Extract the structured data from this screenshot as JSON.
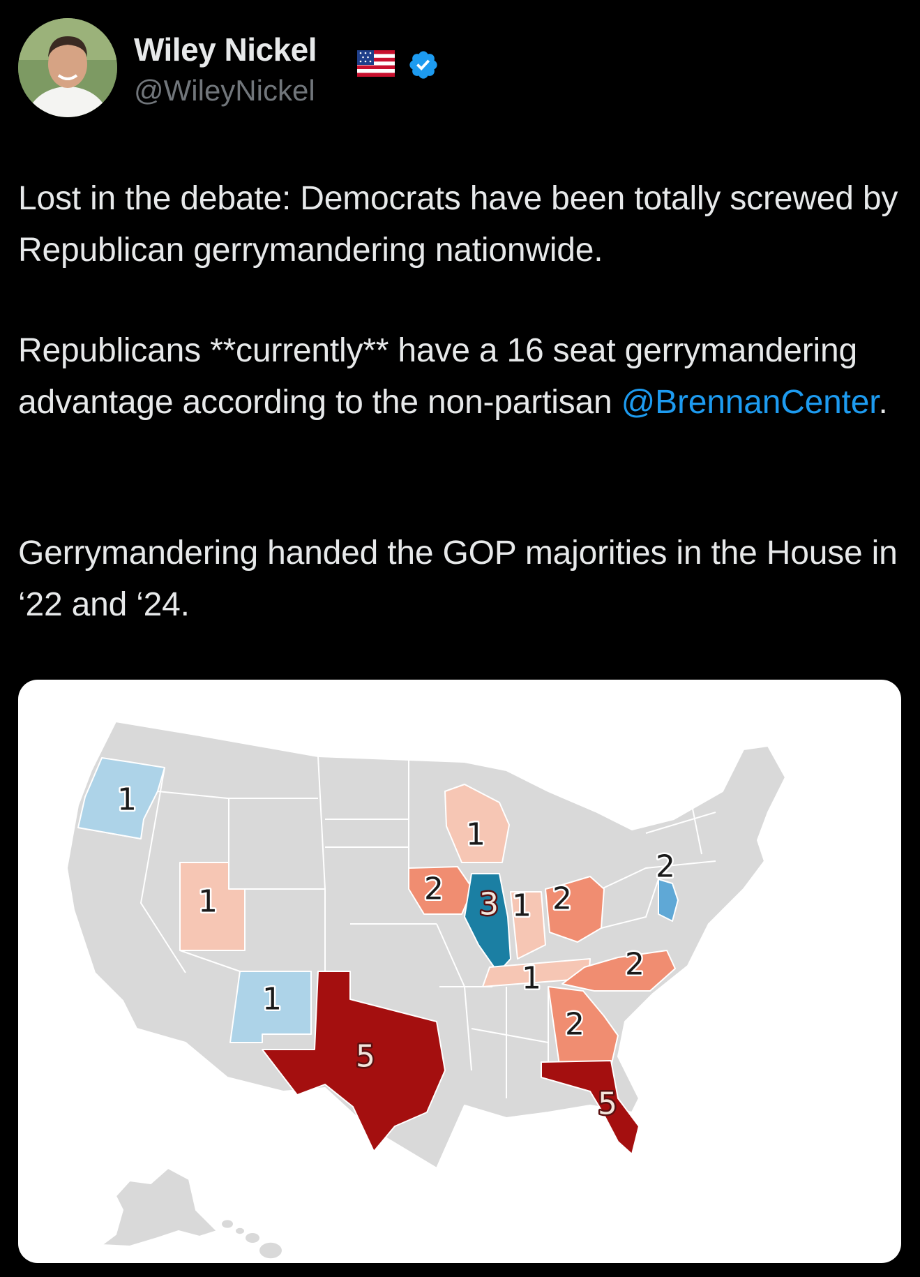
{
  "author": {
    "name": "Wiley Nickel",
    "handle": "@WileyNickel",
    "flag_icon": "us-flag-icon",
    "verified_icon": "verified-badge-icon",
    "verified_color": "#1d9bf0"
  },
  "tweet": {
    "p1": "Lost in the debate: Democrats have been totally screwed by Republican gerrymandering nationwide.",
    "p2_before": "Republicans **currently** have a 16 seat gerrymandering advantage according to the non-partisan ",
    "p2_mention": "@BrennanCenter",
    "p2_after": ".",
    "p3": "Gerrymandering handed the GOP majorities in the House in ‘22 and ‘24."
  },
  "map": {
    "type": "choropleth",
    "region": "United States",
    "colors": {
      "neutral": "#d9d9d9",
      "light_red": "#f6c6b4",
      "medium_red": "#f08d71",
      "dark_red": "#a40f0f",
      "light_blue": "#add3e8",
      "medium_blue": "#5fa8d6",
      "dark_blue": "#1b7fa3"
    },
    "states": [
      {
        "state": "Oregon",
        "label": "1",
        "party": "D"
      },
      {
        "state": "Utah",
        "label": "1",
        "party": "R"
      },
      {
        "state": "New Mexico",
        "label": "1",
        "party": "D"
      },
      {
        "state": "Texas",
        "label": "5",
        "party": "R"
      },
      {
        "state": "Wisconsin",
        "label": "1",
        "party": "R"
      },
      {
        "state": "Iowa",
        "label": "2",
        "party": "R"
      },
      {
        "state": "Illinois",
        "label": "3",
        "party": "D"
      },
      {
        "state": "Indiana",
        "label": "1",
        "party": "R"
      },
      {
        "state": "Ohio",
        "label": "2",
        "party": "R"
      },
      {
        "state": "New Jersey",
        "label": "2",
        "party": "D"
      },
      {
        "state": "Tennessee",
        "label": "1",
        "party": "R"
      },
      {
        "state": "North Carolina",
        "label": "2",
        "party": "R"
      },
      {
        "state": "Georgia",
        "label": "2",
        "party": "R"
      },
      {
        "state": "Florida",
        "label": "5",
        "party": "R"
      }
    ]
  }
}
